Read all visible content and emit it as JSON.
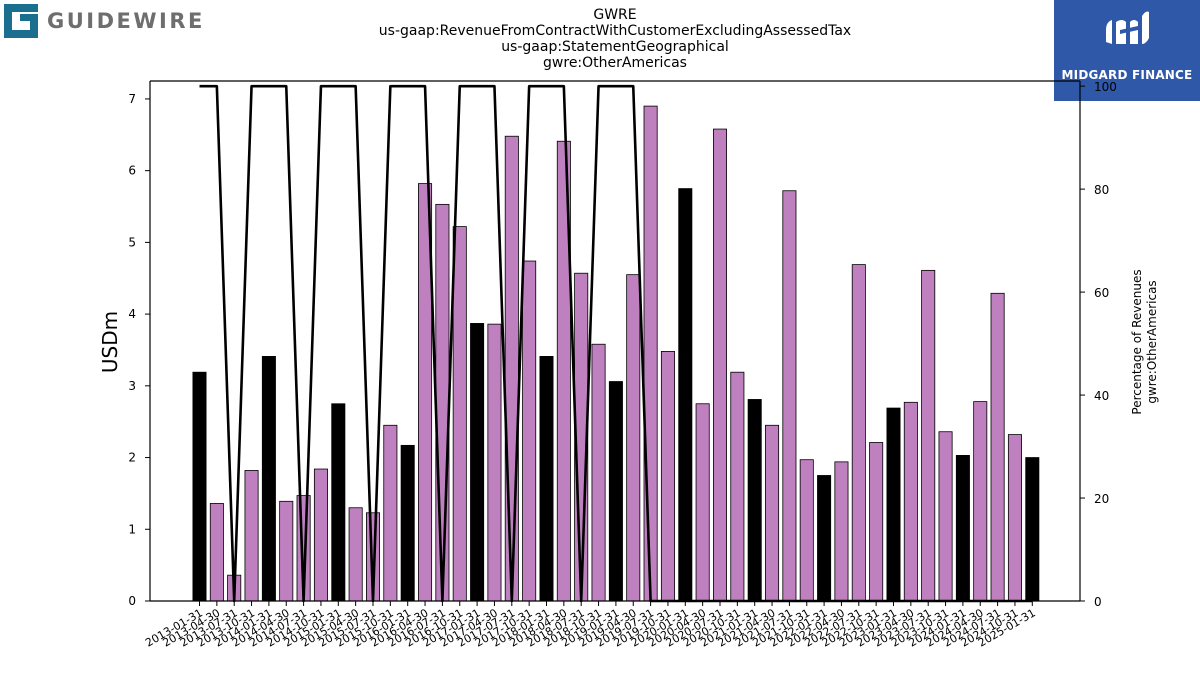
{
  "header": {
    "company_logo_text": "GUIDEWIRE",
    "title_lines": [
      "GWRE",
      "us-gaap:RevenueFromContractWithCustomerExcludingAssessedTax",
      "us-gaap:StatementGeographical",
      "gwre:OtherAmericas"
    ],
    "brand_text": "MIDGARD FINANCE"
  },
  "colors": {
    "accent_bar": "#bf80bf",
    "highlight_bar": "#000000",
    "line": "#000000",
    "brand_bg": "#2f59a8",
    "logo_teal": "#1a6e8e"
  },
  "chart_data": {
    "type": "bar",
    "ylabel_left": "USDm",
    "ylabel_right_lines": [
      "Percentage of Revenues",
      "gwre:OtherAmericas"
    ],
    "ylim": [
      0,
      7.25
    ],
    "y2lim": [
      0,
      101
    ],
    "yticks": [
      0,
      1,
      2,
      3,
      4,
      5,
      6,
      7
    ],
    "y2ticks": [
      0,
      20,
      40,
      60,
      80,
      100
    ],
    "categories": [
      "2013-01-31",
      "2013-04-30",
      "2013-07-31",
      "2013-10-31",
      "2014-01-31",
      "2014-04-30",
      "2014-07-31",
      "2014-10-31",
      "2015-01-31",
      "2015-04-30",
      "2015-07-31",
      "2015-10-31",
      "2016-01-31",
      "2016-04-30",
      "2016-07-31",
      "2016-10-31",
      "2017-01-31",
      "2017-04-30",
      "2017-07-31",
      "2017-10-31",
      "2018-01-31",
      "2018-04-30",
      "2018-07-31",
      "2018-10-31",
      "2019-01-31",
      "2019-04-30",
      "2019-07-31",
      "2019-10-31",
      "2020-01-31",
      "2020-04-30",
      "2020-07-31",
      "2020-10-31",
      "2021-01-31",
      "2021-04-30",
      "2021-07-31",
      "2021-10-31",
      "2022-01-31",
      "2022-04-30",
      "2022-07-31",
      "2022-10-31",
      "2023-01-31",
      "2023-04-30",
      "2023-07-31",
      "2023-10-31",
      "2024-01-31",
      "2024-04-30",
      "2024-07-31",
      "2024-10-31",
      "2025-01-31"
    ],
    "values": [
      3.19,
      1.36,
      0.36,
      1.82,
      3.41,
      1.39,
      1.47,
      1.84,
      2.75,
      1.3,
      1.23,
      2.45,
      2.17,
      5.82,
      5.53,
      5.22,
      3.87,
      3.86,
      6.48,
      4.74,
      3.41,
      6.41,
      4.57,
      3.58,
      3.06,
      4.55,
      6.9,
      3.48,
      5.75,
      2.75,
      6.58,
      3.19,
      2.81,
      2.45,
      5.72,
      1.97,
      1.75,
      1.94,
      4.69,
      2.21,
      2.69,
      2.77,
      4.61,
      2.36,
      2.03,
      2.78,
      4.29,
      2.32,
      2.0
    ],
    "highlighted": [
      true,
      false,
      false,
      false,
      true,
      false,
      false,
      false,
      true,
      false,
      false,
      false,
      true,
      false,
      false,
      false,
      true,
      false,
      false,
      false,
      true,
      false,
      false,
      false,
      true,
      false,
      false,
      false,
      true,
      false,
      false,
      false,
      true,
      false,
      false,
      false,
      true,
      false,
      false,
      false,
      true,
      false,
      false,
      false,
      true,
      false,
      false,
      false,
      true
    ],
    "percentage_series": [
      100,
      100,
      0,
      100,
      100,
      100,
      0,
      100,
      100,
      100,
      0,
      100,
      100,
      100,
      0,
      100,
      100,
      100,
      0,
      100,
      100,
      100,
      0,
      100,
      100,
      100,
      0,
      0,
      0,
      0,
      0,
      0,
      0,
      0,
      0,
      0,
      0,
      0,
      0,
      0,
      0,
      0,
      0,
      0,
      0,
      0,
      0,
      0,
      0
    ]
  }
}
